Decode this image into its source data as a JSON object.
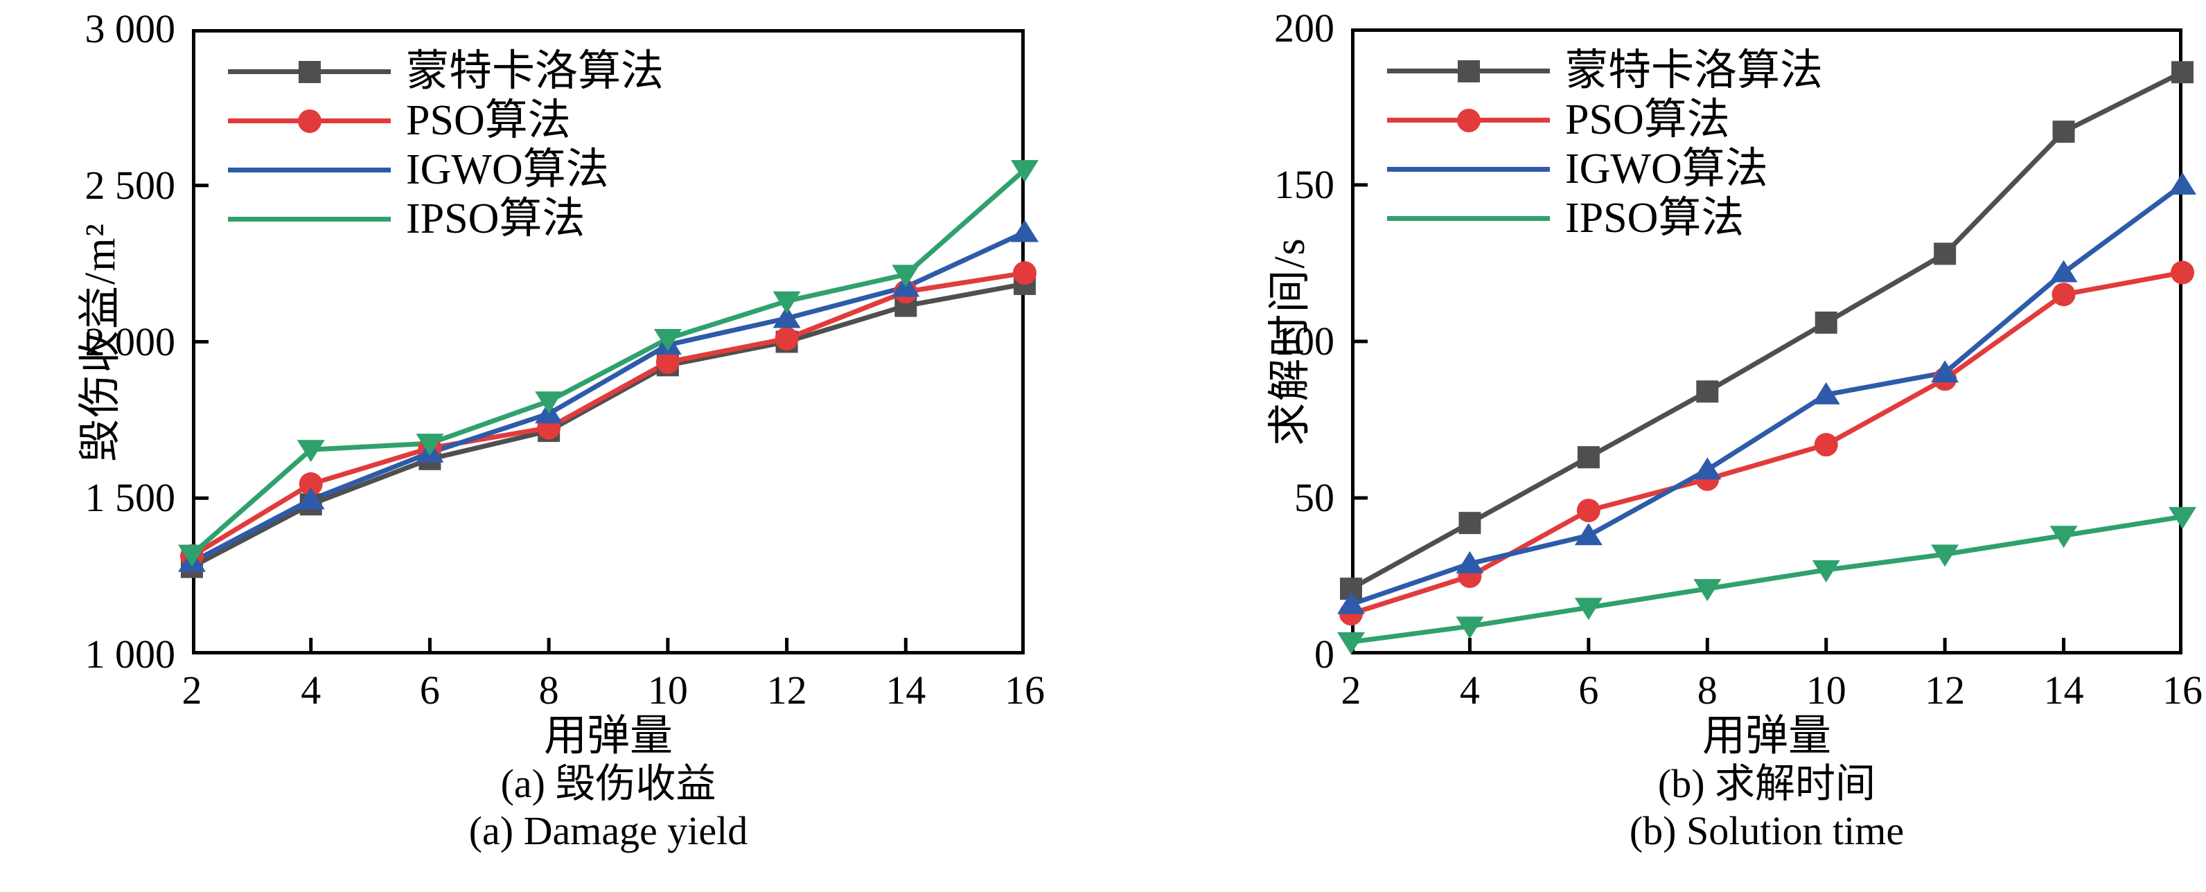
{
  "chart_data": [
    {
      "type": "line",
      "panel": "a",
      "xlabel": "用弹量",
      "ylabel": "毁伤收益/m²",
      "caption_zh": "(a) 毁伤收益",
      "caption_en": "(a) Damage yield",
      "x": [
        2,
        4,
        6,
        8,
        10,
        12,
        14,
        16
      ],
      "xlim": [
        2,
        16
      ],
      "ylim": [
        1000,
        3000
      ],
      "x_tick_labels": [
        "2",
        "4",
        "6",
        "8",
        "10",
        "12",
        "14",
        "16"
      ],
      "y_tick_values": [
        3000,
        2500,
        2000,
        1500,
        1000
      ],
      "y_tick_labels": [
        "3 000",
        "2 500",
        "2 000",
        "1 500",
        "1 000"
      ],
      "grid": false,
      "legend_position": "upper-left",
      "series": [
        {
          "name": "蒙特卡洛算法",
          "color": "#4f4f4f",
          "marker": "square",
          "values": [
            1280,
            1480,
            1625,
            1715,
            1925,
            2000,
            2115,
            2185
          ]
        },
        {
          "name": "PSO算法",
          "color": "#e23b3b",
          "marker": "circle",
          "values": [
            1315,
            1545,
            1660,
            1725,
            1935,
            2010,
            2160,
            2220
          ]
        },
        {
          "name": "IGWO算法",
          "color": "#2d5ba9",
          "marker": "triangle-up",
          "values": [
            1295,
            1495,
            1645,
            1770,
            1990,
            2075,
            2175,
            2350
          ]
        },
        {
          "name": "IPSO算法",
          "color": "#2fa16c",
          "marker": "triangle-down",
          "values": [
            1320,
            1655,
            1675,
            1810,
            2010,
            2130,
            2215,
            2550
          ]
        }
      ]
    },
    {
      "type": "line",
      "panel": "b",
      "xlabel": "用弹量",
      "ylabel": "求解时间/s",
      "caption_zh": "(b) 求解时间",
      "caption_en": "(b) Solution time",
      "x": [
        2,
        4,
        6,
        8,
        10,
        12,
        14,
        16
      ],
      "xlim": [
        2,
        16
      ],
      "ylim": [
        0,
        200
      ],
      "x_tick_labels": [
        "2",
        "4",
        "6",
        "8",
        "10",
        "12",
        "14",
        "16"
      ],
      "y_tick_values": [
        200,
        150,
        100,
        50,
        0
      ],
      "y_tick_labels": [
        "200",
        "150",
        "100",
        "50",
        "0"
      ],
      "grid": false,
      "legend_position": "upper-left",
      "series": [
        {
          "name": "蒙特卡洛算法",
          "color": "#4f4f4f",
          "marker": "square",
          "values": [
            21,
            42,
            63,
            84,
            106,
            128,
            167,
            186
          ]
        },
        {
          "name": "PSO算法",
          "color": "#e23b3b",
          "marker": "circle",
          "values": [
            13,
            25,
            46,
            56,
            67,
            88,
            115,
            122
          ]
        },
        {
          "name": "IGWO算法",
          "color": "#2d5ba9",
          "marker": "triangle-up",
          "values": [
            16,
            29,
            38,
            59,
            83,
            90,
            122,
            150
          ]
        },
        {
          "name": "IPSO算法",
          "color": "#2fa16c",
          "marker": "triangle-down",
          "values": [
            4,
            9,
            15,
            21,
            27,
            32,
            38,
            44
          ]
        }
      ]
    }
  ]
}
